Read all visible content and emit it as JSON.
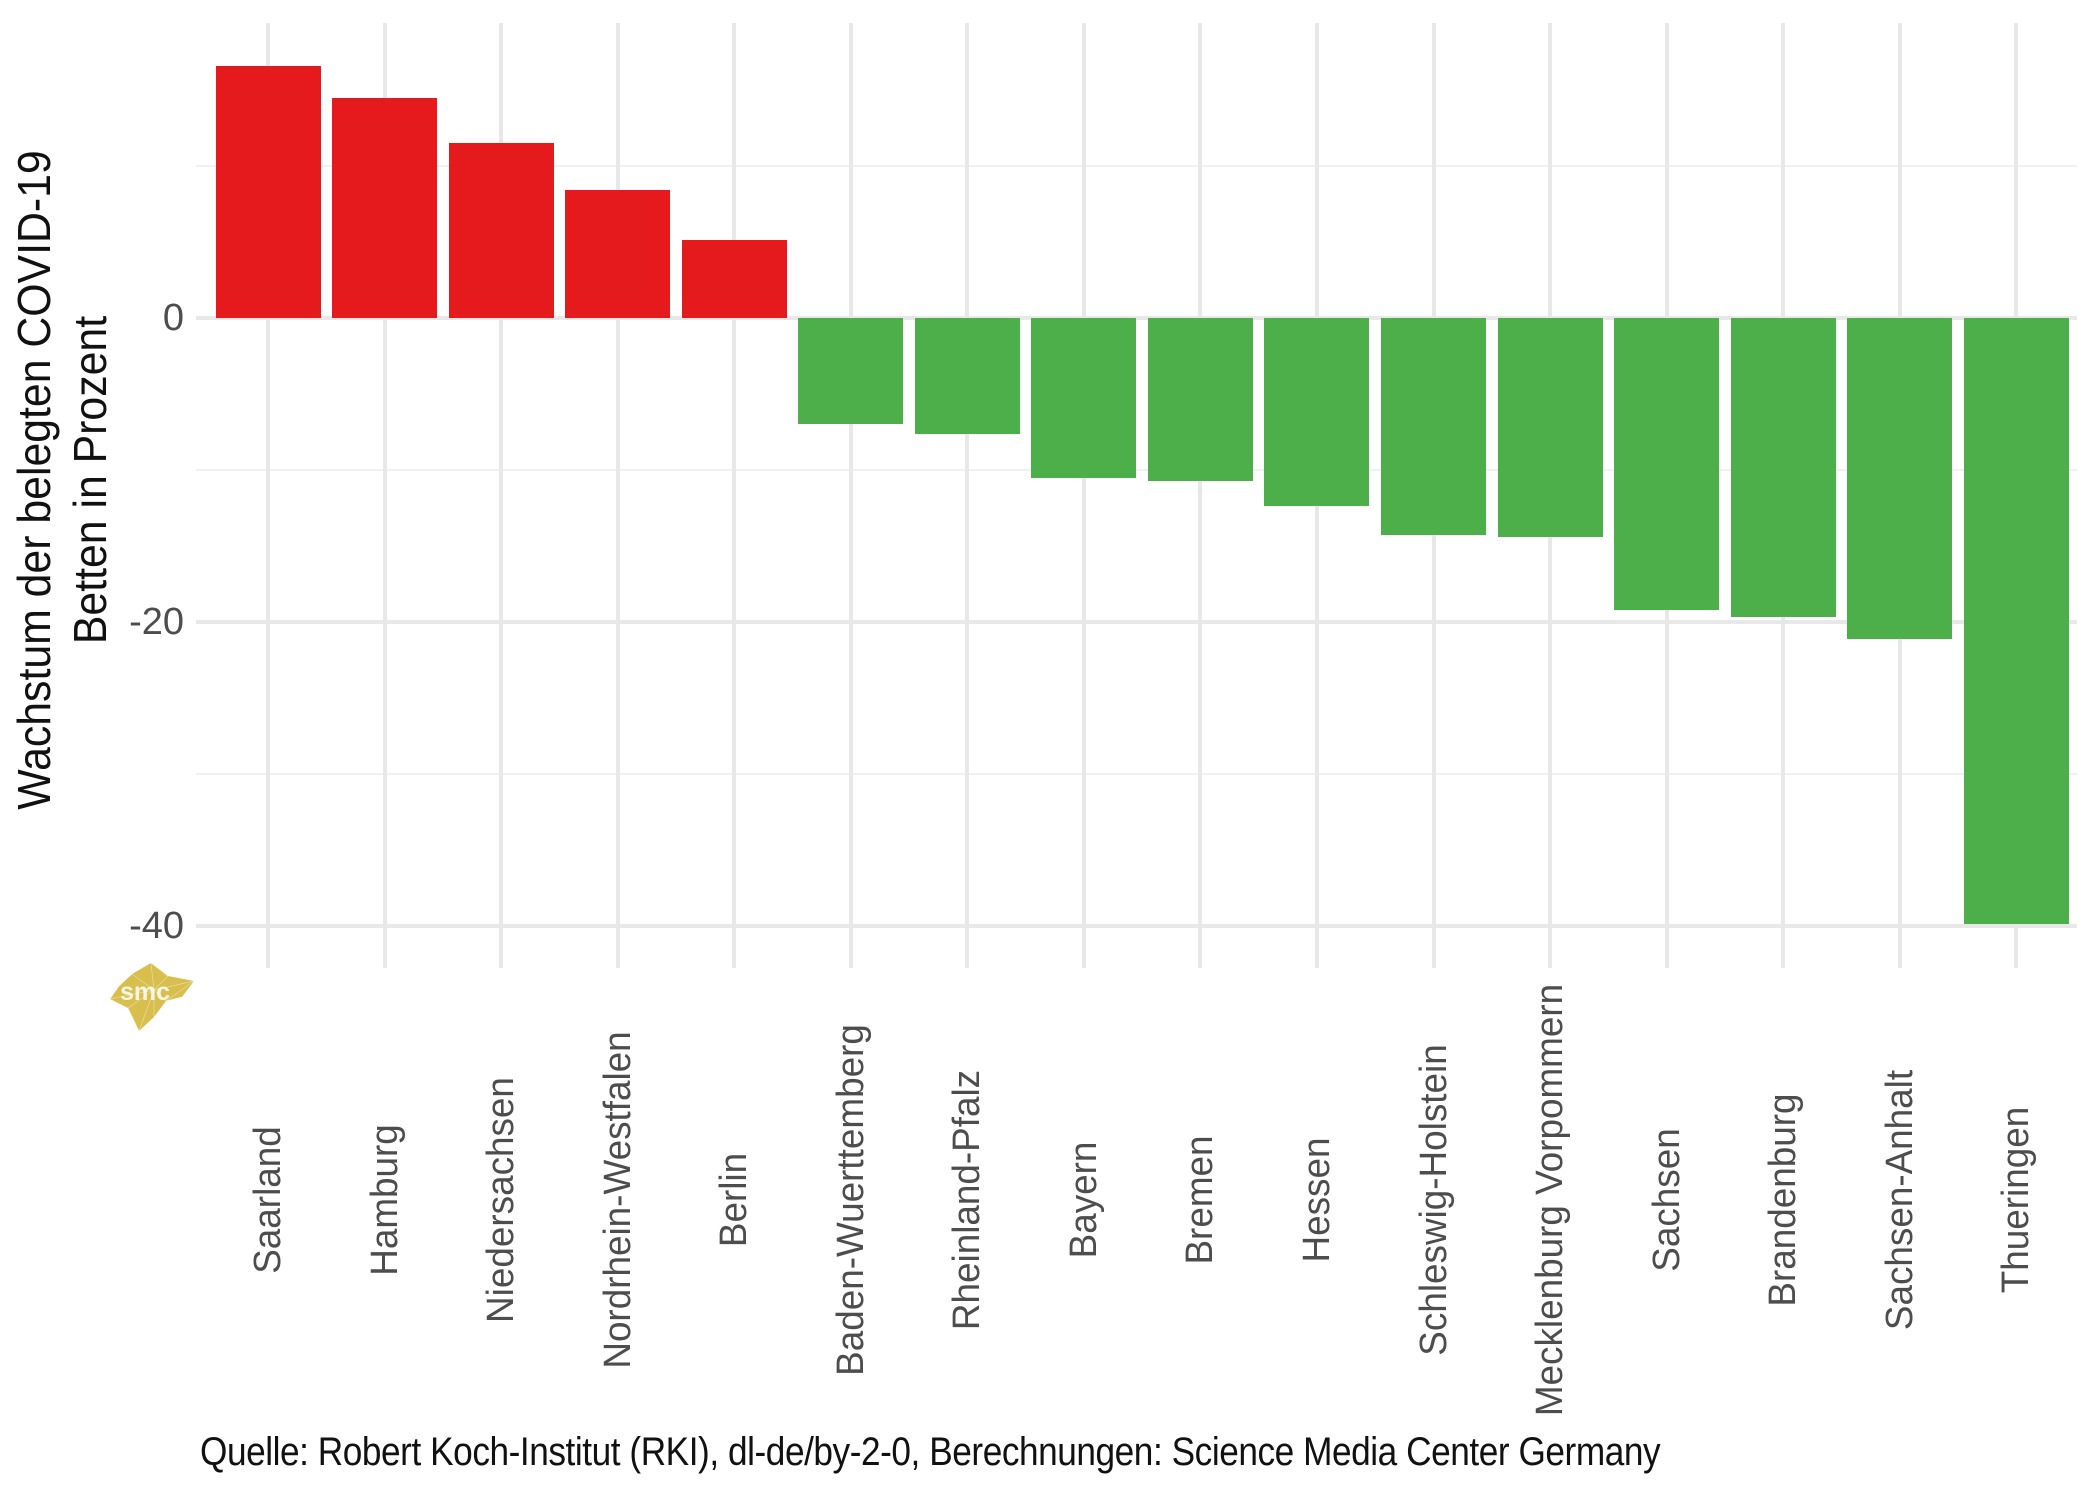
{
  "figure": {
    "y_axis_title_line1": "Wachstum der belegten COVID-19",
    "y_axis_title_line2": "Betten in Prozent",
    "caption": "Quelle: Robert Koch-Institut (RKI), dl-de/by-2-0, Berechnungen: Science Media Center Germany",
    "watermark_text": "smc"
  },
  "chart_data": {
    "type": "bar",
    "ylabel": "Wachstum der belegten COVID-19 Betten in Prozent",
    "xlabel": "",
    "categories": [
      "Saarland",
      "Hamburg",
      "Niedersachsen",
      "Nordrhein-Westfalen",
      "Berlin",
      "Baden-Wuerttemberg",
      "Rheinland-Pfalz",
      "Bayern",
      "Bremen",
      "Hessen",
      "Schleswig-Holstein",
      "Mecklenburg Vorpommern",
      "Sachsen",
      "Brandenburg",
      "Sachsen-Anhalt",
      "Thueringen"
    ],
    "values": [
      16.6,
      14.5,
      11.5,
      8.4,
      5.1,
      -7.0,
      -7.6,
      -10.5,
      -10.7,
      -12.4,
      -14.3,
      -14.4,
      -19.2,
      -19.7,
      -21.1,
      -39.9
    ],
    "positive_color": "#e41a1c",
    "negative_color": "#4daf4a",
    "y_major_ticks": [
      0,
      -20,
      -40
    ],
    "y_tick_labels": [
      "0",
      "-20",
      "-40"
    ],
    "y_minor_gridlines": [
      10,
      -10,
      -30
    ],
    "ylim": [
      -42.8,
      19.4
    ],
    "grid": "on",
    "legend": "none",
    "source_caption": "Quelle: Robert Koch-Institut (RKI), dl-de/by-2-0, Berechnungen: Science Media Center Germany"
  },
  "colors": {
    "background": "#ffffff",
    "grid_major": "#e8e8e8",
    "grid_minor": "#f0f0f0",
    "axis_text": "#4d4d4d",
    "title_text": "#111111",
    "watermark_gold": "#d8bf4d"
  }
}
